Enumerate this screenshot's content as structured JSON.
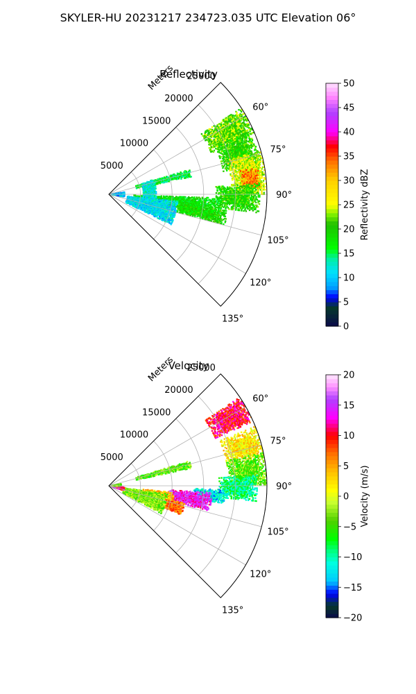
{
  "figure": {
    "title": "SKYLER-HU  20231217  234723.035 UTC Elevation 06°"
  },
  "chart_data": [
    {
      "type": "polar-sector-radar",
      "title": "Reflectivity",
      "radial_axis_label": "Meters",
      "radial_ticks": [
        5000,
        10000,
        15000,
        20000,
        25000
      ],
      "radial_tick_labels": [
        "5000",
        "10000",
        "15000",
        "20000",
        "25000"
      ],
      "rmax": 25000,
      "theta_range_deg": [
        45,
        135
      ],
      "theta_ticks_deg": [
        60,
        75,
        90,
        105,
        120,
        135
      ],
      "theta_tick_labels": [
        "60°",
        "75°",
        "90°",
        "105°",
        "120°",
        "135°"
      ],
      "grid": true,
      "colorbar": {
        "label": "Reflectivity dBZ",
        "vmin": 0,
        "vmax": 50,
        "ticks": [
          0,
          5,
          10,
          15,
          20,
          25,
          30,
          35,
          40,
          45,
          50
        ],
        "tick_labels": [
          "0",
          "5",
          "10",
          "15",
          "20",
          "25",
          "30",
          "35",
          "40",
          "45",
          "50"
        ],
        "colormap": "NWSRef-like"
      },
      "echo_regions": [
        {
          "theta_min": 57,
          "theta_max": 68,
          "r_min": 17500,
          "r_max": 25000,
          "value": 22
        },
        {
          "theta_min": 66,
          "theta_max": 79,
          "r_min": 18500,
          "r_max": 24500,
          "value": 20
        },
        {
          "theta_min": 74,
          "theta_max": 90,
          "r_min": 19500,
          "r_max": 25000,
          "value": 25
        },
        {
          "theta_min": 80,
          "theta_max": 88,
          "r_min": 21000,
          "r_max": 24000,
          "value": 33
        },
        {
          "theta_min": 86,
          "theta_max": 97,
          "r_min": 17000,
          "r_max": 24000,
          "value": 20
        },
        {
          "theta_min": 92,
          "theta_max": 101,
          "r_min": 4000,
          "r_max": 18000,
          "value": 18
        },
        {
          "theta_min": 98,
          "theta_max": 105,
          "r_min": 11000,
          "r_max": 19000,
          "value": 19
        },
        {
          "theta_min": 96,
          "theta_max": 116,
          "r_min": 3000,
          "r_max": 11000,
          "value": 11
        },
        {
          "theta_min": 73,
          "theta_max": 78,
          "r_min": 4500,
          "r_max": 13500,
          "value": 16
        },
        {
          "theta_min": 72,
          "theta_max": 98,
          "r_min": 5500,
          "r_max": 7500,
          "value": 12
        },
        {
          "theta_min": 82,
          "theta_max": 100,
          "r_min": 300,
          "r_max": 2500,
          "value": 10
        }
      ]
    },
    {
      "type": "polar-sector-radar",
      "title": "Velocity",
      "radial_axis_label": "Meters",
      "radial_ticks": [
        5000,
        10000,
        15000,
        20000,
        25000
      ],
      "radial_tick_labels": [
        "5000",
        "10000",
        "15000",
        "20000",
        "25000"
      ],
      "rmax": 25000,
      "theta_range_deg": [
        45,
        135
      ],
      "theta_ticks_deg": [
        60,
        75,
        90,
        105,
        120,
        135
      ],
      "theta_tick_labels": [
        "60°",
        "75°",
        "90°",
        "105°",
        "120°",
        "135°"
      ],
      "grid": true,
      "colorbar": {
        "label": "Velocity (m/s)",
        "vmin": -20,
        "vmax": 20,
        "ticks": [
          -20,
          -15,
          -10,
          -5,
          0,
          5,
          10,
          15,
          20
        ],
        "tick_labels": [
          "−20",
          "−15",
          "−10",
          "−5",
          "0",
          "5",
          "10",
          "15",
          "20"
        ],
        "colormap": "NWSVel-like"
      },
      "echo_regions": [
        {
          "theta_min": 56,
          "theta_max": 66,
          "r_min": 18500,
          "r_max": 25000,
          "value": 10
        },
        {
          "theta_min": 68,
          "theta_max": 79,
          "r_min": 19000,
          "r_max": 25000,
          "value": 2
        },
        {
          "theta_min": 78,
          "theta_max": 90,
          "r_min": 19000,
          "r_max": 25000,
          "value": -4
        },
        {
          "theta_min": 86,
          "theta_max": 96,
          "r_min": 17500,
          "r_max": 23500,
          "value": -9
        },
        {
          "theta_min": 92,
          "theta_max": 99,
          "r_min": 13500,
          "r_max": 18500,
          "value": -12
        },
        {
          "theta_min": 94,
          "theta_max": 104,
          "r_min": 9500,
          "r_max": 16500,
          "value": 14
        },
        {
          "theta_min": 96,
          "theta_max": 106,
          "r_min": 5500,
          "r_max": 10500,
          "value": 4
        },
        {
          "theta_min": 103,
          "theta_max": 112,
          "r_min": 8000,
          "r_max": 12500,
          "value": 7
        },
        {
          "theta_min": 98,
          "theta_max": 118,
          "r_min": 2500,
          "r_max": 9500,
          "value": -3
        },
        {
          "theta_min": 95,
          "theta_max": 108,
          "r_min": 300,
          "r_max": 2500,
          "value": 12
        },
        {
          "theta_min": 73,
          "theta_max": 78,
          "r_min": 4500,
          "r_max": 13500,
          "value": -4
        },
        {
          "theta_min": 80,
          "theta_max": 92,
          "r_min": 300,
          "r_max": 2000,
          "value": -3
        }
      ]
    }
  ]
}
